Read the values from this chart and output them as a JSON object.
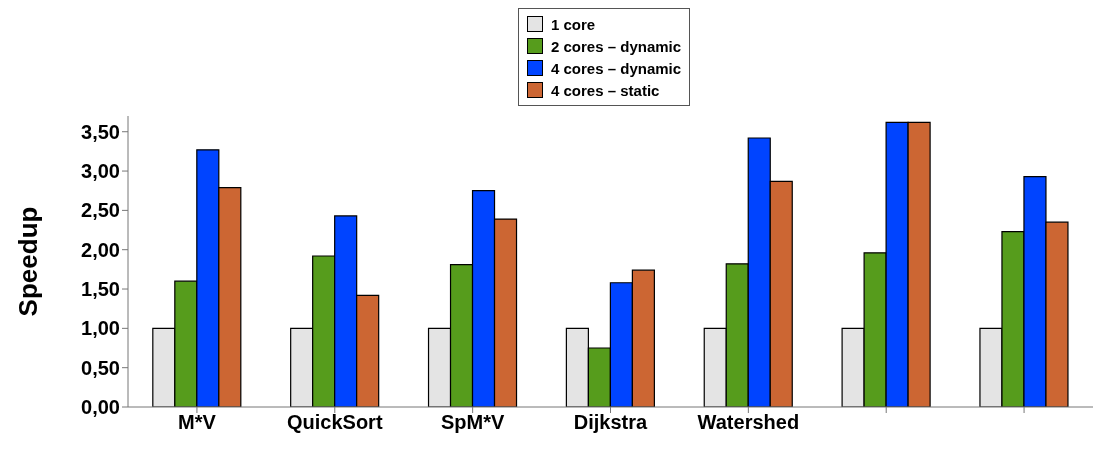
{
  "chart_data": {
    "type": "bar",
    "ylabel": "Speedup",
    "categories": [
      "M*V",
      "QuickSort",
      "SpM*V",
      "Dijkstra",
      "Watershed",
      null,
      null
    ],
    "series": [
      {
        "name": "1 core",
        "color": "#e4e4e4",
        "values": [
          1.0,
          1.0,
          1.0,
          1.0,
          1.0,
          1.0,
          1.0
        ]
      },
      {
        "name": "2 cores – dynamic",
        "color": "#569c1c",
        "values": [
          1.6,
          1.92,
          1.81,
          0.75,
          1.82,
          1.96,
          2.23
        ]
      },
      {
        "name": "4 cores – dynamic",
        "color": "#0044ff",
        "values": [
          3.27,
          2.43,
          2.75,
          1.58,
          3.42,
          3.62,
          2.93
        ]
      },
      {
        "name": "4 cores – static",
        "color": "#cc6633",
        "values": [
          2.79,
          1.42,
          2.39,
          1.74,
          2.87,
          3.62,
          2.35
        ]
      }
    ],
    "ylim": [
      0,
      3.7
    ],
    "yticks": [
      {
        "value": 0,
        "label": "0,00"
      },
      {
        "value": 0.5,
        "label": "0,50"
      },
      {
        "value": 1,
        "label": "1,00"
      },
      {
        "value": 1.5,
        "label": "1,50"
      },
      {
        "value": 2,
        "label": "2,00"
      },
      {
        "value": 2.5,
        "label": "2,50"
      },
      {
        "value": 3,
        "label": "3,00"
      },
      {
        "value": 3.5,
        "label": "3,50"
      }
    ],
    "grid": false,
    "legend": "top"
  }
}
